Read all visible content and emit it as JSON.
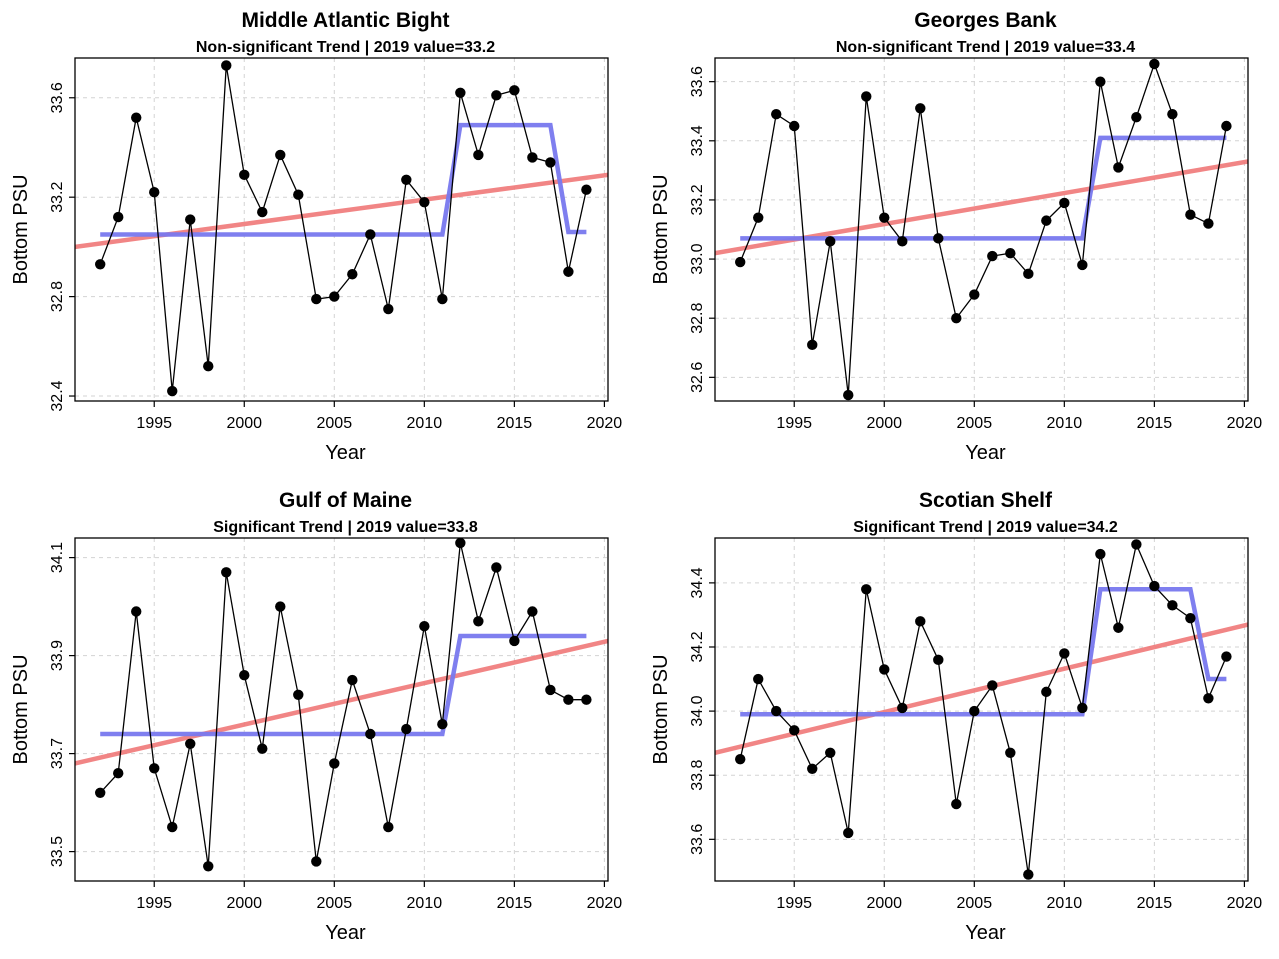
{
  "figure": {
    "colors": {
      "trend": "#f07878",
      "step": "#7878ee",
      "series": "#000000",
      "grid": "#d3d3d3"
    }
  },
  "chart_data": [
    {
      "type": "line",
      "title": "Middle Atlantic Bight",
      "subtitle": "Non-significant Trend | 2019 value=33.2",
      "xlabel": "Year",
      "ylabel": "Bottom PSU",
      "xlim": [
        1990.6,
        2020.2
      ],
      "ylim": [
        32.38,
        33.76
      ],
      "xticks": [
        1995,
        2000,
        2005,
        2010,
        2015,
        2020
      ],
      "xtick_labels": [
        "1995",
        "2000",
        "2005",
        "2010",
        "2015",
        "2020"
      ],
      "yticks": [
        32.4,
        32.8,
        33.2,
        33.6
      ],
      "ytick_labels": [
        "32.4",
        "32.8",
        "33.2",
        "33.6"
      ],
      "x": [
        1992,
        1993,
        1994,
        1995,
        1996,
        1997,
        1998,
        1999,
        2000,
        2001,
        2002,
        2003,
        2004,
        2005,
        2006,
        2007,
        2008,
        2009,
        2010,
        2011,
        2012,
        2013,
        2014,
        2015,
        2016,
        2017,
        2018,
        2019
      ],
      "values": [
        32.93,
        33.12,
        33.52,
        33.22,
        32.42,
        33.11,
        32.52,
        33.73,
        33.29,
        33.14,
        33.37,
        33.21,
        32.79,
        32.8,
        32.89,
        33.05,
        32.75,
        33.27,
        33.18,
        32.79,
        33.62,
        33.37,
        33.61,
        33.63,
        33.36,
        33.34,
        32.9,
        33.23
      ],
      "trend": {
        "x": [
          1990.6,
          2020.2
        ],
        "y": [
          33.0,
          33.29
        ]
      },
      "step": {
        "x": [
          1992,
          2011,
          2012,
          2017,
          2018,
          2019
        ],
        "y": [
          33.05,
          33.05,
          33.49,
          33.49,
          33.06,
          33.06
        ]
      }
    },
    {
      "type": "line",
      "title": "Georges Bank",
      "subtitle": "Non-significant Trend | 2019 value=33.4",
      "xlabel": "Year",
      "ylabel": "Bottom PSU",
      "xlim": [
        1990.6,
        2020.2
      ],
      "ylim": [
        32.52,
        33.68
      ],
      "xticks": [
        1995,
        2000,
        2005,
        2010,
        2015,
        2020
      ],
      "xtick_labels": [
        "1995",
        "2000",
        "2005",
        "2010",
        "2015",
        "2020"
      ],
      "yticks": [
        32.6,
        32.8,
        33.0,
        33.2,
        33.4,
        33.6
      ],
      "ytick_labels": [
        "32.6",
        "32.8",
        "33.0",
        "33.2",
        "33.4",
        "33.6"
      ],
      "x": [
        1992,
        1993,
        1994,
        1995,
        1996,
        1997,
        1998,
        1999,
        2000,
        2001,
        2002,
        2003,
        2004,
        2005,
        2006,
        2007,
        2008,
        2009,
        2010,
        2011,
        2012,
        2013,
        2014,
        2015,
        2016,
        2017,
        2018,
        2019
      ],
      "values": [
        32.99,
        33.14,
        33.49,
        33.45,
        32.71,
        33.06,
        32.54,
        33.55,
        33.14,
        33.06,
        33.51,
        33.07,
        32.8,
        32.88,
        33.01,
        33.02,
        32.95,
        33.13,
        33.19,
        32.98,
        33.6,
        33.31,
        33.48,
        33.66,
        33.49,
        33.15,
        33.12,
        33.45
      ],
      "trend": {
        "x": [
          1990.6,
          2020.2
        ],
        "y": [
          33.02,
          33.33
        ]
      },
      "step": {
        "x": [
          1992,
          2011,
          2012,
          2019
        ],
        "y": [
          33.07,
          33.07,
          33.41,
          33.41
        ]
      }
    },
    {
      "type": "line",
      "title": "Gulf of Maine",
      "subtitle": "Significant Trend | 2019 value=33.8",
      "xlabel": "Year",
      "ylabel": "Bottom PSU",
      "xlim": [
        1990.6,
        2020.2
      ],
      "ylim": [
        33.44,
        34.14
      ],
      "xticks": [
        1995,
        2000,
        2005,
        2010,
        2015,
        2020
      ],
      "xtick_labels": [
        "1995",
        "2000",
        "2005",
        "2010",
        "2015",
        "2020"
      ],
      "yticks": [
        33.5,
        33.7,
        33.9,
        34.1
      ],
      "ytick_labels": [
        "33.5",
        "33.7",
        "33.9",
        "34.1"
      ],
      "x": [
        1992,
        1993,
        1994,
        1995,
        1996,
        1997,
        1998,
        1999,
        2000,
        2001,
        2002,
        2003,
        2004,
        2005,
        2006,
        2007,
        2008,
        2009,
        2010,
        2011,
        2012,
        2013,
        2014,
        2015,
        2016,
        2017,
        2018,
        2019
      ],
      "values": [
        33.62,
        33.66,
        33.99,
        33.67,
        33.55,
        33.72,
        33.47,
        34.07,
        33.86,
        33.71,
        34.0,
        33.82,
        33.48,
        33.68,
        33.85,
        33.74,
        33.55,
        33.75,
        33.96,
        33.76,
        34.13,
        33.97,
        34.08,
        33.93,
        33.99,
        33.83,
        33.81,
        33.81
      ],
      "trend": {
        "x": [
          1990.6,
          2020.2
        ],
        "y": [
          33.68,
          33.93
        ]
      },
      "step": {
        "x": [
          1992,
          2011,
          2012,
          2019
        ],
        "y": [
          33.74,
          33.74,
          33.94,
          33.94
        ]
      }
    },
    {
      "type": "line",
      "title": "Scotian Shelf",
      "subtitle": "Significant Trend | 2019 value=34.2",
      "xlabel": "Year",
      "ylabel": "Bottom PSU",
      "xlim": [
        1990.6,
        2020.2
      ],
      "ylim": [
        33.47,
        34.54
      ],
      "xticks": [
        1995,
        2000,
        2005,
        2010,
        2015,
        2020
      ],
      "xtick_labels": [
        "1995",
        "2000",
        "2005",
        "2010",
        "2015",
        "2020"
      ],
      "yticks": [
        33.6,
        33.8,
        34.0,
        34.2,
        34.4
      ],
      "ytick_labels": [
        "33.6",
        "33.8",
        "34.0",
        "34.2",
        "34.4"
      ],
      "x": [
        1992,
        1993,
        1994,
        1995,
        1996,
        1997,
        1998,
        1999,
        2000,
        2001,
        2002,
        2003,
        2004,
        2005,
        2006,
        2007,
        2008,
        2009,
        2010,
        2011,
        2012,
        2013,
        2014,
        2015,
        2016,
        2017,
        2018,
        2019
      ],
      "values": [
        33.85,
        34.1,
        34.0,
        33.94,
        33.82,
        33.87,
        33.62,
        34.38,
        34.13,
        34.01,
        34.28,
        34.16,
        33.71,
        34.0,
        34.08,
        33.87,
        33.49,
        34.06,
        34.18,
        34.01,
        34.49,
        34.26,
        34.52,
        34.39,
        34.33,
        34.29,
        34.04,
        34.17
      ],
      "trend": {
        "x": [
          1990.6,
          2020.2
        ],
        "y": [
          33.87,
          34.27
        ]
      },
      "step": {
        "x": [
          1992,
          2011,
          2012,
          2017,
          2018,
          2019
        ],
        "y": [
          33.99,
          33.99,
          34.38,
          34.38,
          34.1,
          34.1
        ]
      }
    }
  ]
}
